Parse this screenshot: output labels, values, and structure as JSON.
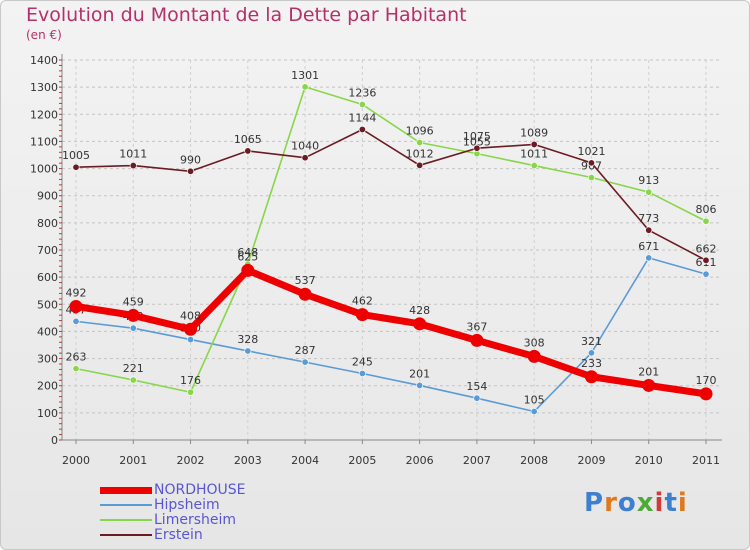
{
  "chart_data": {
    "type": "line",
    "title": "Evolution du Montant de la Dette par Habitant",
    "subtitle": "(en €)",
    "xlabel": "",
    "ylabel": "",
    "categories": [
      "2000",
      "2001",
      "2002",
      "2003",
      "2004",
      "2005",
      "2006",
      "2007",
      "2008",
      "2009",
      "2010",
      "2011"
    ],
    "ylim": [
      0,
      1400
    ],
    "yticks": [
      0,
      100,
      200,
      300,
      400,
      500,
      600,
      700,
      800,
      900,
      1000,
      1100,
      1200,
      1300,
      1400
    ],
    "grid": "horizontal dashed",
    "legend_position": "bottom-left",
    "series": [
      {
        "name": "NORDHOUSE",
        "color": "#ee0000",
        "emphasis": true,
        "values": [
          492,
          459,
          408,
          625,
          537,
          462,
          428,
          367,
          308,
          233,
          201,
          170
        ]
      },
      {
        "name": "Hipsheim",
        "color": "#5b9bd5",
        "emphasis": false,
        "values": [
          437,
          412,
          370,
          328,
          287,
          245,
          201,
          154,
          105,
          321,
          671,
          611
        ]
      },
      {
        "name": "Limersheim",
        "color": "#88d64a",
        "emphasis": false,
        "values": [
          263,
          221,
          176,
          648,
          1301,
          1236,
          1096,
          1055,
          1011,
          967,
          913,
          806
        ]
      },
      {
        "name": "Erstein",
        "color": "#6b1c22",
        "emphasis": false,
        "values": [
          1005,
          1011,
          990,
          1065,
          1040,
          1144,
          1012,
          1075,
          1089,
          1021,
          773,
          662
        ]
      }
    ]
  },
  "brand": {
    "text": "Proxiti",
    "letter_colors": [
      "#3f7fd0",
      "#e0781e",
      "#3f7fd0",
      "#4daa36",
      "#d23a3a",
      "#3f7fd0",
      "#e0781e"
    ]
  }
}
